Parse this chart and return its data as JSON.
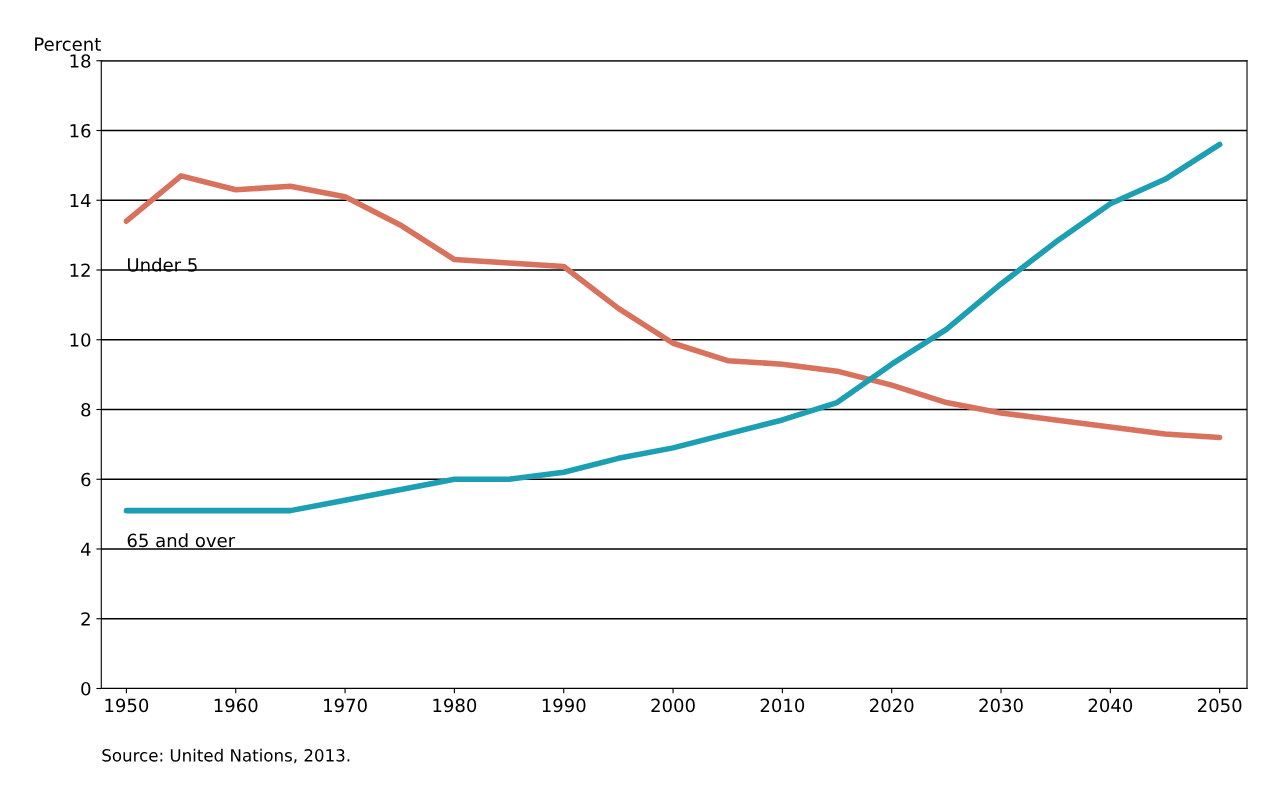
{
  "chart_data": {
    "type": "line",
    "ylabel": "Percent",
    "x": [
      1950,
      1955,
      1960,
      1965,
      1970,
      1975,
      1980,
      1985,
      1990,
      1995,
      2000,
      2005,
      2010,
      2015,
      2020,
      2025,
      2030,
      2035,
      2040,
      2045,
      2050
    ],
    "series": [
      {
        "name": "Under 5",
        "color": "#d9725c",
        "values": [
          13.4,
          14.7,
          14.3,
          14.4,
          14.1,
          13.3,
          12.3,
          12.2,
          12.1,
          10.9,
          9.9,
          9.4,
          9.3,
          9.1,
          8.7,
          8.2,
          7.9,
          7.7,
          7.5,
          7.3,
          7.2
        ]
      },
      {
        "name": "65 and over",
        "color": "#1c9fb3",
        "values": [
          5.1,
          5.1,
          5.1,
          5.1,
          5.4,
          5.7,
          6.0,
          6.0,
          6.2,
          6.6,
          6.9,
          7.3,
          7.7,
          8.2,
          9.3,
          10.3,
          11.6,
          12.8,
          13.9,
          14.6,
          15.6
        ]
      }
    ],
    "xlim": [
      1947.7,
      2052.5
    ],
    "xticks": [
      1950,
      1960,
      1970,
      1980,
      1990,
      2000,
      2010,
      2020,
      2030,
      2040,
      2050
    ],
    "ylim": [
      0,
      18
    ],
    "yticks": [
      0,
      2,
      4,
      6,
      8,
      10,
      12,
      14,
      16,
      18
    ],
    "grid": "y",
    "legend": false,
    "marker": "none",
    "line_style": "solid",
    "annotations": [
      "Source: United Nations, 2013."
    ]
  }
}
